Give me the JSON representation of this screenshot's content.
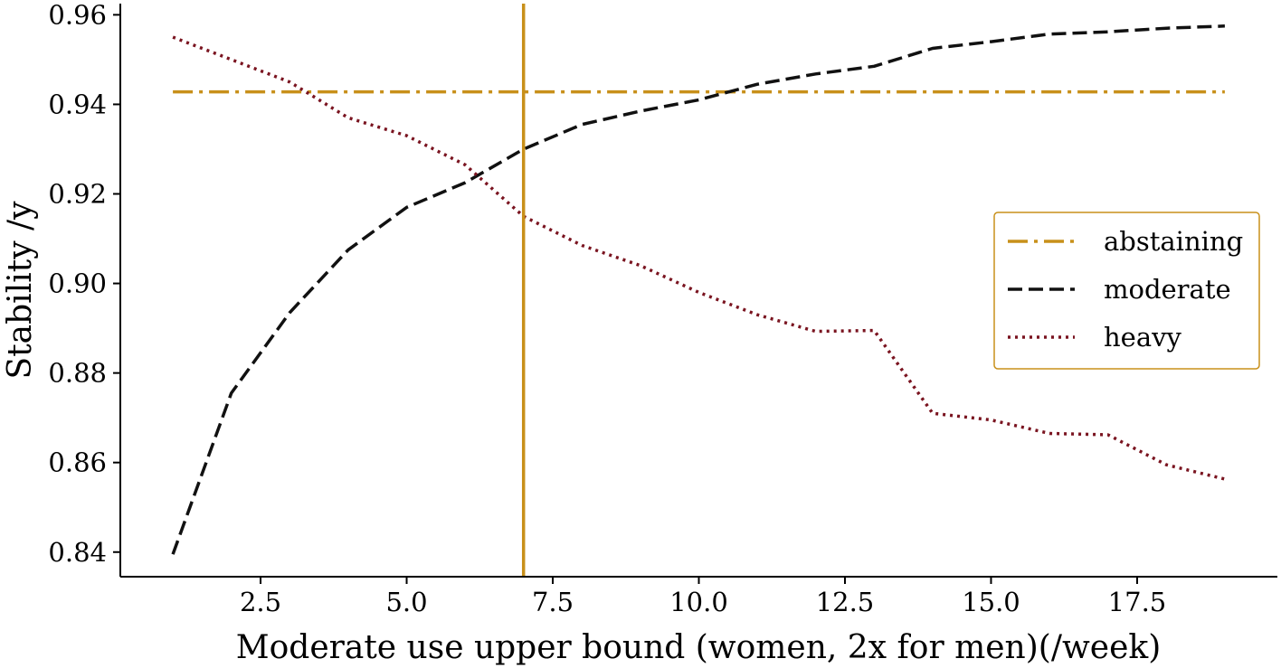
{
  "chart_data": {
    "type": "line",
    "xlabel": "Moderate use upper bound (women, 2x for men)(/week)",
    "ylabel": "Stability /y",
    "xlim": [
      0.1,
      19.9
    ],
    "ylim": [
      0.8345,
      0.9625
    ],
    "xticks": [
      2.5,
      5.0,
      7.5,
      10.0,
      12.5,
      15.0,
      17.5
    ],
    "xtick_labels": [
      "2.5",
      "5.0",
      "7.5",
      "10.0",
      "12.5",
      "15.0",
      "17.5"
    ],
    "yticks": [
      0.84,
      0.86,
      0.88,
      0.9,
      0.92,
      0.94,
      0.96
    ],
    "ytick_labels": [
      "0.84",
      "0.86",
      "0.88",
      "0.90",
      "0.92",
      "0.94",
      "0.96"
    ],
    "grid": false,
    "legend_position": "right",
    "vline": {
      "x": 7,
      "color": "#c8901a"
    },
    "series": [
      {
        "name": "abstaining",
        "style": "dashdot",
        "color": "#c8901a",
        "x": [
          1,
          19
        ],
        "y": [
          0.9428,
          0.9428
        ]
      },
      {
        "name": "moderate",
        "style": "dashed",
        "color": "#111111",
        "x": [
          1,
          2,
          3,
          4,
          5,
          6,
          7,
          8,
          9,
          10,
          11,
          12,
          13,
          14,
          15,
          16,
          17,
          18,
          19
        ],
        "y": [
          0.8395,
          0.8755,
          0.8935,
          0.9075,
          0.917,
          0.9225,
          0.93,
          0.9355,
          0.9385,
          0.941,
          0.9445,
          0.9468,
          0.9485,
          0.9525,
          0.954,
          0.9557,
          0.9562,
          0.957,
          0.9575
        ]
      },
      {
        "name": "heavy",
        "style": "dotted",
        "color": "#7a1420",
        "x": [
          1,
          2,
          3,
          4,
          5,
          6,
          7,
          8,
          9,
          10,
          11,
          12,
          13,
          14,
          15,
          16,
          17,
          18,
          19
        ],
        "y": [
          0.955,
          0.95,
          0.945,
          0.937,
          0.933,
          0.9265,
          0.915,
          0.9085,
          0.904,
          0.898,
          0.893,
          0.8893,
          0.8895,
          0.871,
          0.8695,
          0.8665,
          0.8662,
          0.8595,
          0.8563
        ]
      }
    ]
  }
}
